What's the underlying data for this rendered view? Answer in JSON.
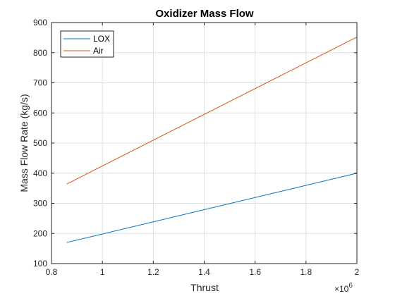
{
  "chart_data": {
    "type": "line",
    "title": "Oxidizer Mass Flow",
    "xlabel": "Thrust",
    "ylabel": "Mass Flow Rate (kg/s)",
    "x_exponent_base": "×10",
    "x_exponent_power": "6",
    "xlim": [
      0.8,
      2.0
    ],
    "ylim": [
      100,
      900
    ],
    "xticks": [
      0.8,
      1.0,
      1.2,
      1.4,
      1.6,
      1.8,
      2.0
    ],
    "xtick_labels": [
      "0.8",
      "1",
      "1.2",
      "1.4",
      "1.6",
      "1.8",
      "2"
    ],
    "yticks": [
      100,
      200,
      300,
      400,
      500,
      600,
      700,
      800,
      900
    ],
    "ytick_labels": [
      "100",
      "200",
      "300",
      "400",
      "500",
      "600",
      "700",
      "800",
      "900"
    ],
    "grid": true,
    "legend_position": "top-left",
    "series": [
      {
        "name": "LOX",
        "color": "#0072BD",
        "x": [
          0.86,
          2.0
        ],
        "y": [
          170,
          400
        ]
      },
      {
        "name": "Air",
        "color": "#D95319",
        "x": [
          0.86,
          2.0
        ],
        "y": [
          364,
          852
        ]
      }
    ]
  }
}
